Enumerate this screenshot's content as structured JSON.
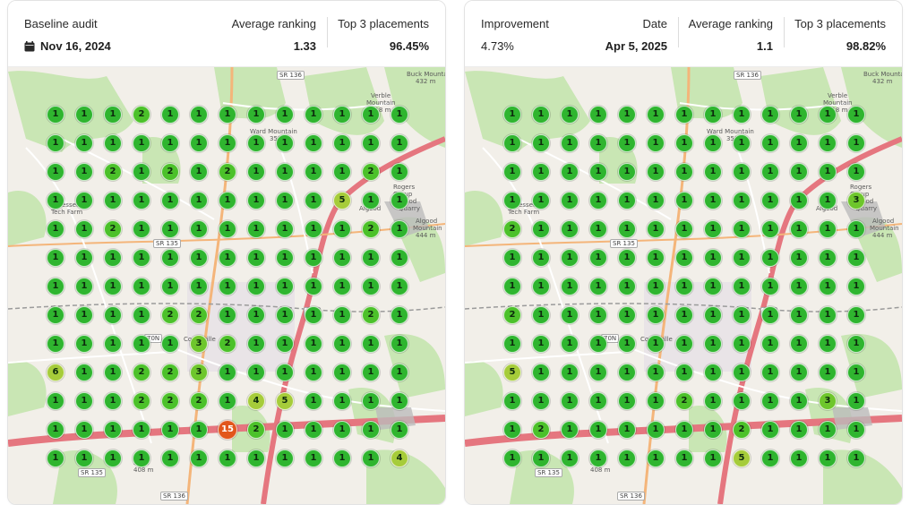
{
  "baseline": {
    "title": "Baseline audit",
    "date": "Nov 16, 2024",
    "avg_label": "Average ranking",
    "avg_value": "1.33",
    "top_label": "Top 3 placements",
    "top_value": "96.45%",
    "calendar_icon": "calendar-icon",
    "grid": [
      [
        1,
        1,
        1,
        2,
        1,
        1,
        1,
        1,
        1,
        1,
        1,
        1,
        1
      ],
      [
        1,
        1,
        1,
        1,
        1,
        1,
        1,
        1,
        1,
        1,
        1,
        1,
        1
      ],
      [
        1,
        1,
        2,
        1,
        2,
        1,
        2,
        1,
        1,
        1,
        1,
        2,
        1
      ],
      [
        1,
        1,
        1,
        1,
        1,
        1,
        1,
        1,
        1,
        1,
        5,
        1,
        1
      ],
      [
        1,
        1,
        2,
        1,
        1,
        1,
        1,
        1,
        1,
        1,
        1,
        2,
        1
      ],
      [
        1,
        1,
        1,
        1,
        1,
        1,
        1,
        1,
        1,
        1,
        1,
        1,
        1
      ],
      [
        1,
        1,
        1,
        1,
        1,
        1,
        1,
        1,
        1,
        1,
        1,
        1,
        1
      ],
      [
        1,
        1,
        1,
        1,
        2,
        2,
        1,
        1,
        1,
        1,
        1,
        2,
        1
      ],
      [
        1,
        1,
        1,
        1,
        1,
        3,
        2,
        1,
        1,
        1,
        1,
        1,
        1
      ],
      [
        6,
        1,
        1,
        2,
        2,
        3,
        1,
        1,
        1,
        1,
        1,
        1,
        1
      ],
      [
        1,
        1,
        1,
        2,
        2,
        2,
        1,
        4,
        5,
        1,
        1,
        1,
        1
      ],
      [
        1,
        1,
        1,
        1,
        1,
        1,
        15,
        2,
        1,
        1,
        1,
        1,
        1
      ],
      [
        1,
        1,
        1,
        1,
        1,
        1,
        1,
        1,
        1,
        1,
        1,
        1,
        4
      ]
    ]
  },
  "current": {
    "improvement_label": "Improvement",
    "improvement_value": "4.73%",
    "date_label": "Date",
    "date_value": "Apr 5, 2025",
    "avg_label": "Average ranking",
    "avg_value": "1.1",
    "top_label": "Top 3 placements",
    "top_value": "98.82%",
    "grid": [
      [
        1,
        1,
        1,
        1,
        1,
        1,
        1,
        1,
        1,
        1,
        1,
        1,
        1
      ],
      [
        1,
        1,
        1,
        1,
        1,
        1,
        1,
        1,
        1,
        1,
        1,
        1,
        1
      ],
      [
        1,
        1,
        1,
        1,
        1,
        1,
        1,
        1,
        1,
        1,
        1,
        1,
        1
      ],
      [
        1,
        1,
        1,
        1,
        1,
        1,
        1,
        1,
        1,
        1,
        1,
        1,
        3
      ],
      [
        2,
        1,
        1,
        1,
        1,
        1,
        1,
        1,
        1,
        1,
        1,
        1,
        1
      ],
      [
        1,
        1,
        1,
        1,
        1,
        1,
        1,
        1,
        1,
        1,
        1,
        1,
        1
      ],
      [
        1,
        1,
        1,
        1,
        1,
        1,
        1,
        1,
        1,
        1,
        1,
        1,
        1
      ],
      [
        2,
        1,
        1,
        1,
        1,
        1,
        1,
        1,
        1,
        1,
        1,
        1,
        1
      ],
      [
        1,
        1,
        1,
        1,
        1,
        1,
        1,
        1,
        1,
        1,
        1,
        1,
        1
      ],
      [
        5,
        1,
        1,
        1,
        1,
        1,
        1,
        1,
        1,
        1,
        1,
        1,
        1
      ],
      [
        1,
        1,
        1,
        1,
        1,
        1,
        2,
        1,
        1,
        1,
        1,
        3,
        1
      ],
      [
        1,
        2,
        1,
        1,
        1,
        1,
        1,
        1,
        2,
        1,
        1,
        1,
        1
      ],
      [
        1,
        1,
        1,
        1,
        1,
        1,
        1,
        1,
        5,
        1,
        1,
        1,
        1
      ]
    ]
  },
  "map_labels": {
    "sr136_top": "SR 136",
    "sr136_bottom": "SR 136",
    "sr135": "SR 135",
    "buck_mountain": "Buck Mountain",
    "buck_mountain_elev": "432 m",
    "verble": "Verble",
    "verble2": "Mountain",
    "verble_elev": "418 m",
    "ward": "Ward Mountain",
    "ward_elev": "350",
    "algood": "Algood",
    "algood_mtn": "Algood",
    "algood_mtn2": "Mountain",
    "algood_mtn_elev": "444 m",
    "rogers": "Rogers",
    "rogers2": "Group",
    "rogers3": "Algood",
    "rogers4": "Quarry",
    "tech_farm": "essee",
    "tech_farm2": "Tech Farm",
    "cookeville": "Cookeville",
    "sr70n": "70N",
    "rt111": "111",
    "knob": "Knob",
    "knob_elev": "408 m",
    "sr135_b": "SR 135"
  },
  "colors": {
    "rank1": "#2fb52f",
    "rank_mid": "#a6cc3a",
    "rank_bad": "#e2561b",
    "interstate": "#e5767f",
    "primary_road": "#f4b57a",
    "forest": "#c9e6b4",
    "land": "#f2efe9"
  }
}
